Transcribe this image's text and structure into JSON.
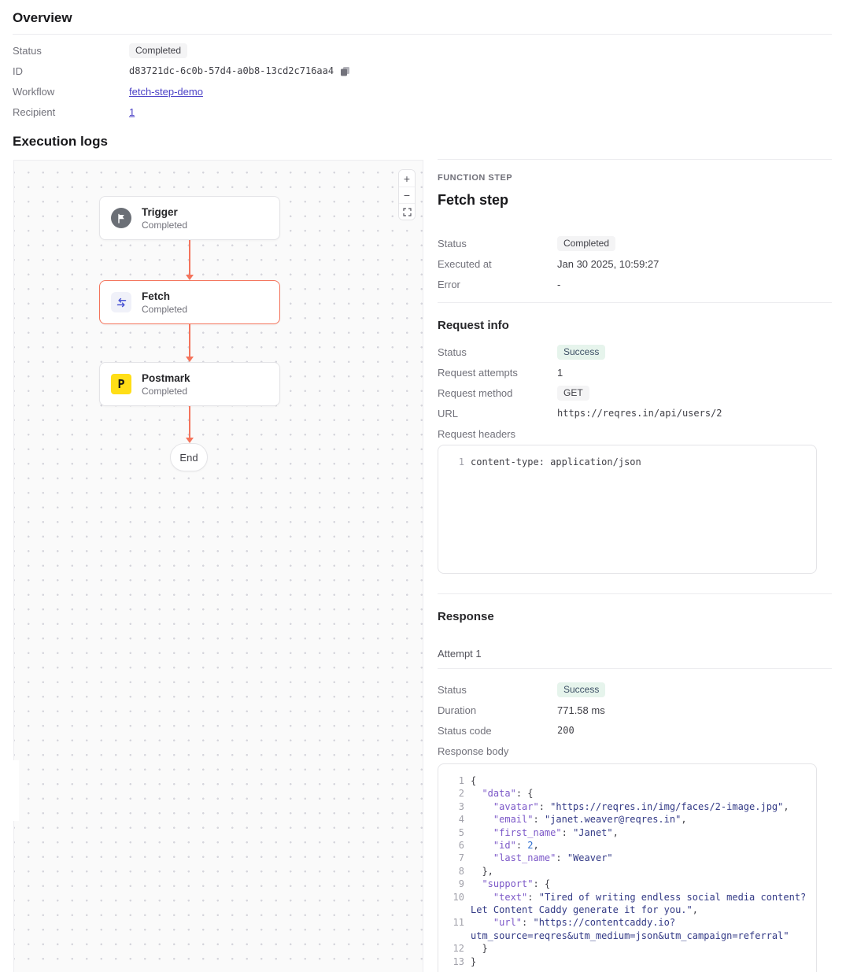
{
  "overview": {
    "title": "Overview",
    "status_label": "Status",
    "status_value": "Completed",
    "id_label": "ID",
    "id_value": "d83721dc-6c0b-57d4-a0b8-13cd2c716aa4",
    "workflow_label": "Workflow",
    "workflow_value": "fetch-step-demo",
    "recipient_label": "Recipient",
    "recipient_value": "1"
  },
  "execution": {
    "title": "Execution logs"
  },
  "canvas": {
    "nodes": [
      {
        "title": "Trigger",
        "subtitle": "Completed",
        "icon": "flag-icon"
      },
      {
        "title": "Fetch",
        "subtitle": "Completed",
        "icon": "swap-arrows-icon",
        "selected": true
      },
      {
        "title": "Postmark",
        "subtitle": "Completed",
        "icon": "postmark-icon",
        "icon_letter": "P"
      }
    ],
    "end_label": "End",
    "zoom_in_label": "+",
    "zoom_out_label": "−"
  },
  "panel": {
    "kicker": "FUNCTION STEP",
    "title": "Fetch step",
    "status_label": "Status",
    "status_value": "Completed",
    "executed_label": "Executed at",
    "executed_value": "Jan 30 2025, 10:59:27",
    "error_label": "Error",
    "error_value": "-"
  },
  "request": {
    "heading": "Request info",
    "status_label": "Status",
    "status_value": "Success",
    "attempts_label": "Request attempts",
    "attempts_value": "1",
    "method_label": "Request method",
    "method_value": "GET",
    "url_label": "URL",
    "url_value": "https://reqres.in/api/users/2",
    "headers_label": "Request headers",
    "headers_lines": [
      {
        "n": "1",
        "t": [
          [
            "p",
            "content-type: application/json"
          ]
        ]
      }
    ]
  },
  "response": {
    "heading": "Response",
    "attempt_label": "Attempt 1",
    "status_label": "Status",
    "status_value": "Success",
    "duration_label": "Duration",
    "duration_value": "771.58 ms",
    "code_label": "Status code",
    "code_value": "200",
    "body_label": "Response body",
    "body_lines": [
      {
        "n": "1",
        "t": [
          [
            "p",
            "{"
          ]
        ]
      },
      {
        "n": "2",
        "t": [
          [
            "p",
            "  "
          ],
          [
            "k",
            "\"data\""
          ],
          [
            "p",
            ": {"
          ]
        ]
      },
      {
        "n": "3",
        "t": [
          [
            "p",
            "    "
          ],
          [
            "k",
            "\"avatar\""
          ],
          [
            "p",
            ": "
          ],
          [
            "s",
            "\"https://reqres.in/img/faces/2-image.jpg\""
          ],
          [
            "p",
            ","
          ]
        ]
      },
      {
        "n": "4",
        "t": [
          [
            "p",
            "    "
          ],
          [
            "k",
            "\"email\""
          ],
          [
            "p",
            ": "
          ],
          [
            "s",
            "\"janet.weaver@reqres.in\""
          ],
          [
            "p",
            ","
          ]
        ]
      },
      {
        "n": "5",
        "t": [
          [
            "p",
            "    "
          ],
          [
            "k",
            "\"first_name\""
          ],
          [
            "p",
            ": "
          ],
          [
            "s",
            "\"Janet\""
          ],
          [
            "p",
            ","
          ]
        ]
      },
      {
        "n": "6",
        "t": [
          [
            "p",
            "    "
          ],
          [
            "k",
            "\"id\""
          ],
          [
            "p",
            ": "
          ],
          [
            "n",
            "2"
          ],
          [
            "p",
            ","
          ]
        ]
      },
      {
        "n": "7",
        "t": [
          [
            "p",
            "    "
          ],
          [
            "k",
            "\"last_name\""
          ],
          [
            "p",
            ": "
          ],
          [
            "s",
            "\"Weaver\""
          ]
        ]
      },
      {
        "n": "8",
        "t": [
          [
            "p",
            "  },"
          ]
        ]
      },
      {
        "n": "9",
        "t": [
          [
            "p",
            "  "
          ],
          [
            "k",
            "\"support\""
          ],
          [
            "p",
            ": {"
          ]
        ]
      },
      {
        "n": "10",
        "t": [
          [
            "p",
            "    "
          ],
          [
            "k",
            "\"text\""
          ],
          [
            "p",
            ": "
          ],
          [
            "s",
            "\"Tired of writing endless social media content?\nLet Content Caddy generate it for you.\""
          ],
          [
            "p",
            ","
          ]
        ]
      },
      {
        "n": "11",
        "t": [
          [
            "p",
            "    "
          ],
          [
            "k",
            "\"url\""
          ],
          [
            "p",
            ": "
          ],
          [
            "s",
            "\"https://contentcaddy.io?\nutm_source=reqres&utm_medium=json&utm_campaign=referral\""
          ]
        ]
      },
      {
        "n": "12",
        "t": [
          [
            "p",
            "  }"
          ]
        ]
      },
      {
        "n": "13",
        "t": [
          [
            "p",
            "}"
          ]
        ]
      }
    ]
  },
  "colors": {
    "accent_edge": "#f4745c",
    "badge_gray_bg": "#f4f4f5",
    "badge_green_bg": "#e6f4ec",
    "link": "#4b41c6",
    "postmark_yellow": "#ffde17",
    "json_key": "#7c58c8",
    "json_string": "#333a86",
    "json_number": "#2f6fd0"
  }
}
